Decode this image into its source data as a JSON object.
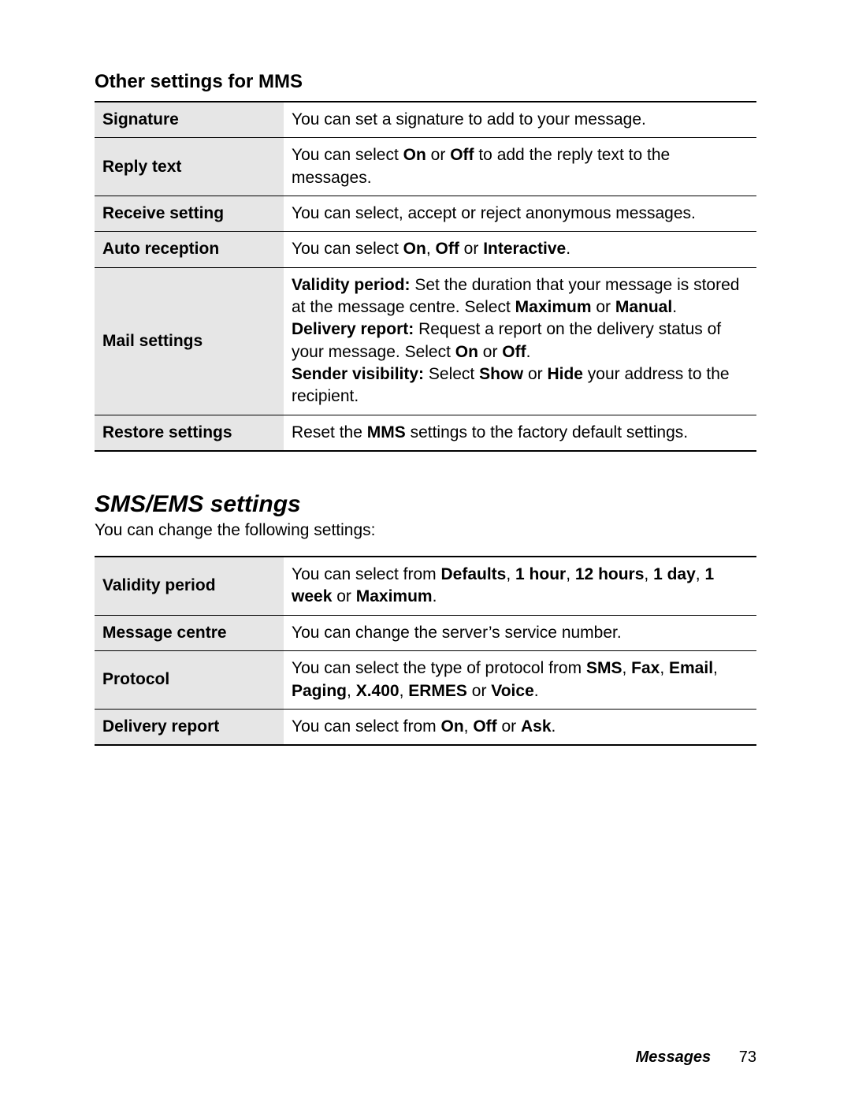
{
  "colors": {
    "background": "#ffffff",
    "text": "#000000",
    "label_bg": "#e6e6e6",
    "border": "#000000"
  },
  "typography": {
    "body_font": "Arial, Helvetica, sans-serif",
    "body_size_pt": 16,
    "h3_size_pt": 18,
    "h2_size_pt": 22,
    "h2_italic": true
  },
  "section1": {
    "title": "Other settings for MMS",
    "rows": [
      {
        "label": "Signature",
        "desc": "You can set a signature to add to your message."
      },
      {
        "label": "Reply text",
        "desc": "You can select <b>On</b> or <b>Off</b> to add the reply text to the messages."
      },
      {
        "label": "Receive setting",
        "desc": "You can select, accept or reject anonymous messages."
      },
      {
        "label": "Auto reception",
        "desc": "You can select <b>On</b>, <b>Off</b> or <b>Interactive</b>."
      },
      {
        "label": "Mail settings",
        "desc": "<b>Validity period:</b> Set the duration that your message is stored at the message centre. Select <b>Maximum</b> or <b>Manual</b>.<br><b>Delivery report:</b> Request a report on the delivery status of your message. Select <b>On</b> or <b>Off</b>.<br><b>Sender visibility:</b> Select <b>Show</b> or <b>Hide</b> your address to the recipient."
      },
      {
        "label": "Restore settings",
        "desc": "Reset the <b>MMS</b> settings to the factory default settings."
      }
    ]
  },
  "section2": {
    "heading": "SMS/EMS settings",
    "intro": "You can change the following settings:",
    "rows": [
      {
        "label": "Validity period",
        "desc": "You can select from <b>Defaults</b>, <b>1 hour</b>, <b>12 hours</b>, <b>1 day</b>, <b>1 week</b> or <b>Maximum</b>."
      },
      {
        "label": "Message centre",
        "desc": "You can change the server’s service number."
      },
      {
        "label": "Protocol",
        "desc": "You can select the type of protocol from <b>SMS</b>, <b>Fax</b>, <b>Email</b>, <b>Paging</b>, <b>X.400</b>, <b>ERMES</b> or <b>Voice</b>."
      },
      {
        "label": "Delivery report",
        "desc": "You can select from <b>On</b>, <b>Off</b> or <b>Ask</b>."
      }
    ]
  },
  "footer": {
    "section": "Messages",
    "page_number": "73"
  }
}
